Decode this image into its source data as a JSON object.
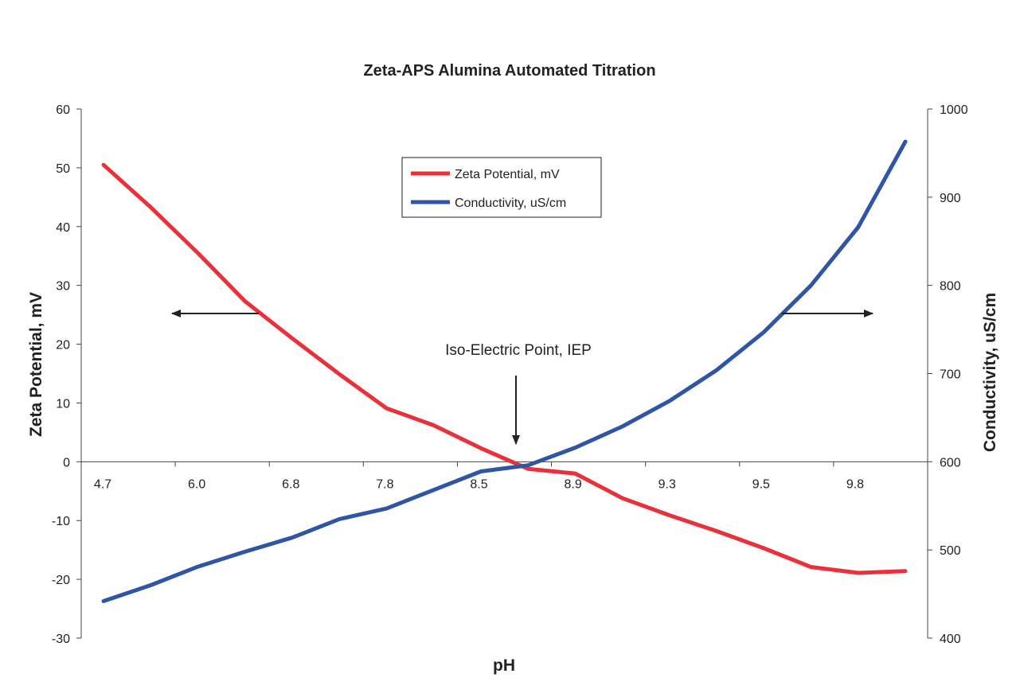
{
  "chart_data": {
    "type": "line",
    "title": "Zeta-APS Alumina Automated Titration",
    "xlabel": "pH",
    "ylabel_left": "Zeta Potential, mV",
    "ylabel_right": "Conductivity, uS/cm",
    "x_tick_labels": [
      "4.7",
      "6.0",
      "6.8",
      "7.8",
      "8.5",
      "8.9",
      "9.3",
      "9.5",
      "9.8"
    ],
    "ylim_left": [
      -30,
      60
    ],
    "yticks_left": [
      "60",
      "50",
      "40",
      "30",
      "20",
      "10",
      "0",
      "-10",
      "-20",
      "-30"
    ],
    "ylim_right": [
      400,
      1000
    ],
    "yticks_right": [
      "1000",
      "900",
      "800",
      "700",
      "600",
      "500",
      "400"
    ],
    "grid": false,
    "legend_position": "top-center",
    "series": [
      {
        "name": "Zeta Potential, mV",
        "axis": "left",
        "color": "#e8313a",
        "values": [
          50.5,
          43.3,
          35.5,
          27.3,
          21.0,
          14.9,
          9.1,
          6.2,
          2.3,
          -1.2,
          -2.0,
          -6.2,
          -9.1,
          -11.8,
          -14.7,
          -17.9,
          -18.9,
          -18.6
        ]
      },
      {
        "name": "Conductivity, uS/cm",
        "axis": "right",
        "color": "#2f55a4",
        "values": [
          442,
          460,
          481,
          498,
          514,
          535,
          547,
          568,
          589,
          596,
          616,
          640,
          669,
          704,
          747,
          800,
          866,
          963
        ]
      }
    ],
    "annotations": [
      {
        "text": "Iso-Electric Point, IEP",
        "kind": "down-arrow"
      },
      {
        "text": "",
        "kind": "left-arrow"
      },
      {
        "text": "",
        "kind": "right-arrow"
      }
    ]
  }
}
